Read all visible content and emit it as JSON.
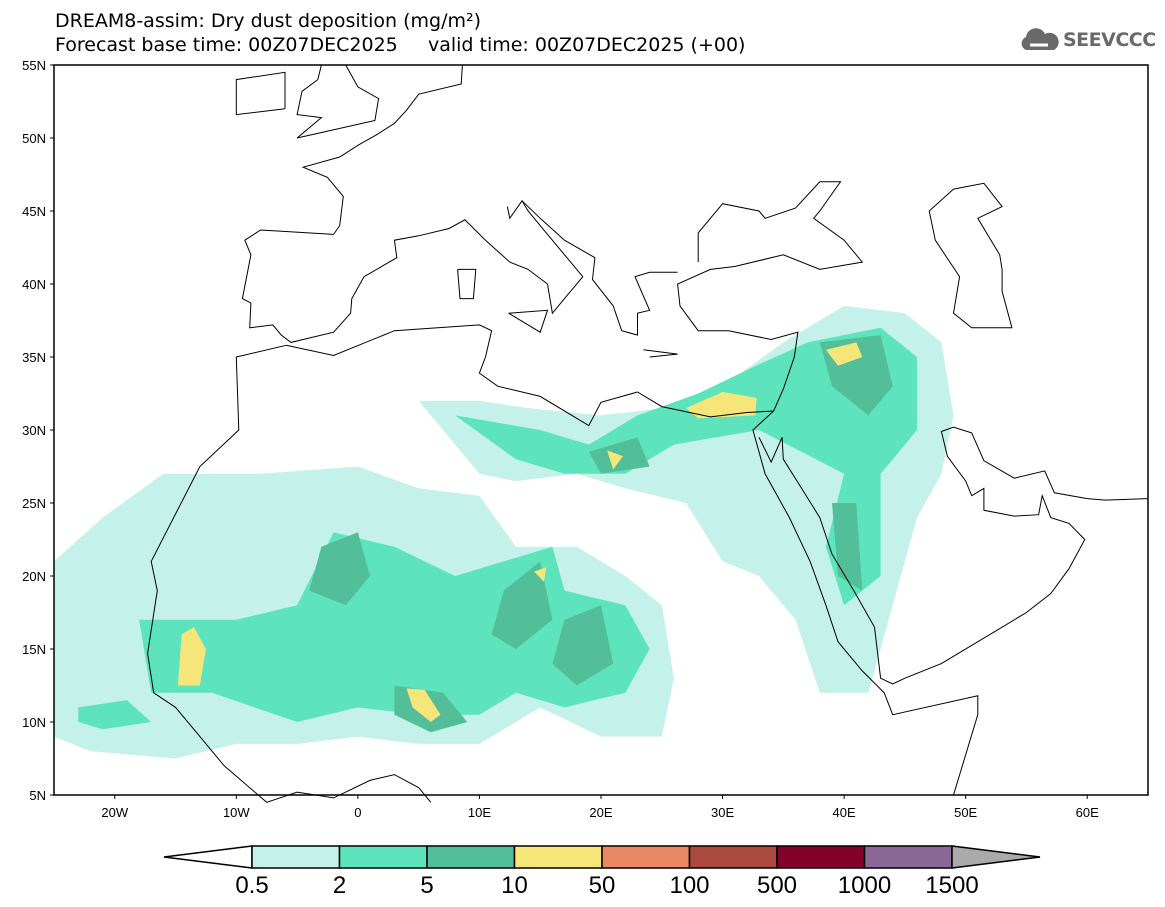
{
  "header": {
    "title": "DREAM8-assim: Dry dust deposition (mg/m²)",
    "subtitle": "Forecast base time: 00Z07DEC2025     valid time: 00Z07DEC2025 (+00)",
    "logo_text": "SEEVCCC",
    "logo_icon": "cloud-icon"
  },
  "axes": {
    "lat_labels": [
      "55N",
      "50N",
      "45N",
      "40N",
      "35N",
      "30N",
      "25N",
      "20N",
      "15N",
      "10N",
      "5N"
    ],
    "lat_values": [
      55,
      50,
      45,
      40,
      35,
      30,
      25,
      20,
      15,
      10,
      5
    ],
    "lon_labels": [
      "20W",
      "10W",
      "0",
      "10E",
      "20E",
      "30E",
      "40E",
      "50E",
      "60E"
    ],
    "lon_values": [
      -20,
      -10,
      0,
      10,
      20,
      30,
      40,
      50,
      60
    ],
    "lon_range": [
      -25,
      65
    ],
    "lat_range": [
      5,
      55
    ]
  },
  "colorbar": {
    "labels": [
      "0.5",
      "2",
      "5",
      "10",
      "50",
      "100",
      "500",
      "1000",
      "1500"
    ],
    "colors": [
      "#c4f2ea",
      "#5ee4bd",
      "#52be9a",
      "#f6e67a",
      "#ea8866",
      "#ab493f",
      "#83002a",
      "#8c6898"
    ],
    "under_color": "#ffffff",
    "over_color": "#aaaaaa"
  }
}
